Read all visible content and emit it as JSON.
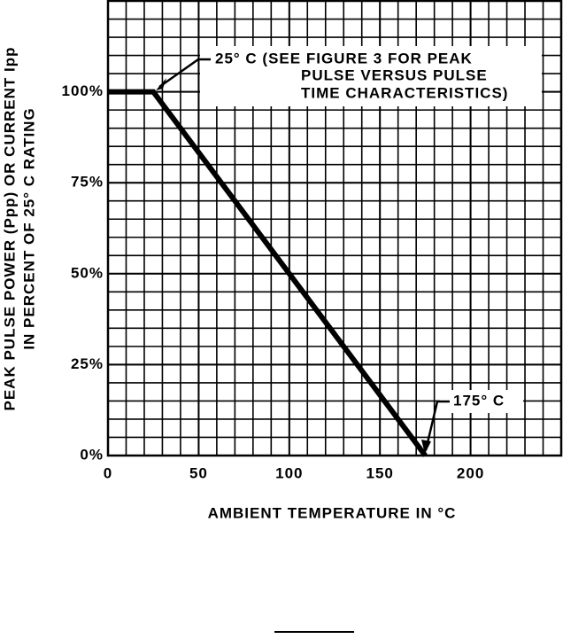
{
  "chart_data": {
    "type": "line",
    "x_label": "AMBIENT TEMPERATURE IN °C",
    "y_label": [
      "PEAK PULSE POWER (Ppp) OR CURRENT Ipp",
      "IN PERCENT OF 25° C RATING"
    ],
    "x": [
      0,
      25,
      175
    ],
    "series": [
      {
        "color": "#000000",
        "values": [
          100,
          100,
          0
        ]
      }
    ],
    "xlim": [
      0,
      250
    ],
    "ylim": [
      0,
      125
    ],
    "xticks": [
      0,
      50,
      100,
      150,
      200
    ],
    "yticks": [
      {
        "value": 0,
        "label": "0%"
      },
      {
        "value": 25,
        "label": "25%"
      },
      {
        "value": 50,
        "label": "50%"
      },
      {
        "value": 75,
        "label": "75%"
      },
      {
        "value": 100,
        "label": "100%"
      }
    ],
    "grid": true,
    "annotations": [
      {
        "text": [
          "25° C (SEE FIGURE 3 FOR PEAK",
          "PULSE VERSUS PULSE",
          "TIME CHARACTERISTICS)"
        ]
      },
      {
        "text": [
          "175° C"
        ]
      }
    ]
  }
}
